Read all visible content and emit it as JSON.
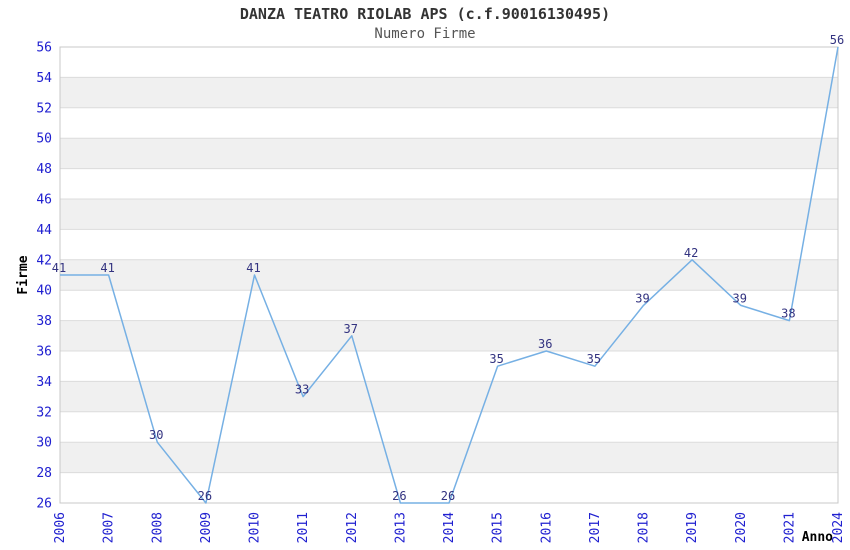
{
  "chart_data": {
    "type": "line",
    "title": "DANZA TEATRO RIOLAB APS (c.f.90016130495)",
    "subtitle": "Numero Firme",
    "xlabel": "Anno",
    "ylabel": "Firme",
    "categories": [
      "2006",
      "2007",
      "2008",
      "2009",
      "2010",
      "2011",
      "2012",
      "2013",
      "2014",
      "2015",
      "2016",
      "2017",
      "2018",
      "2019",
      "2020",
      "2021",
      "2024"
    ],
    "values": [
      41,
      41,
      30,
      26,
      41,
      33,
      37,
      26,
      26,
      35,
      36,
      35,
      39,
      42,
      39,
      38,
      56
    ],
    "ylim": [
      26,
      56
    ],
    "ytick_step": 2,
    "grid": true,
    "band_fill": "alternating",
    "legend": "none",
    "colors": {
      "line": "#76b0e4",
      "tick_label": "#2020d0",
      "data_label": "#333380",
      "band": "#f0f0f0",
      "gridline": "#dcdcdc",
      "border": "#c8c8c8",
      "title": "#333333",
      "subtitle": "#555555",
      "axis_title": "#000000",
      "background": "#ffffff"
    }
  }
}
